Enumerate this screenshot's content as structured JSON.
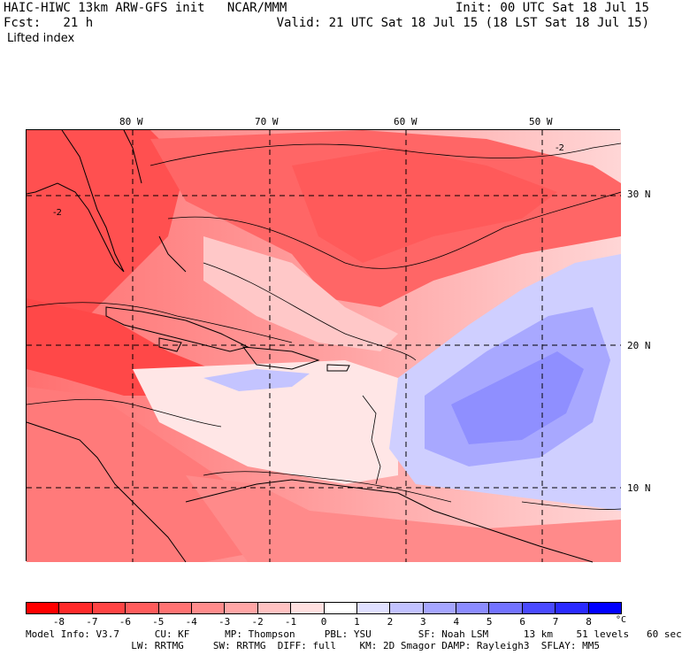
{
  "header": {
    "model_line": "HAIC-HIWC 13km ARW-GFS init   NCAR/MMM",
    "init_line": "Init: 00 UTC Sat 18 Jul 15",
    "fcst_line": "Fcst:   21 h",
    "valid_line": "Valid: 21 UTC Sat 18 Jul 15 (18 LST Sat 18 Jul 15)",
    "field_name": "Lifted index"
  },
  "map": {
    "lon_labels": [
      "80 W",
      "70 W",
      "60 W",
      "50 W"
    ],
    "lat_labels": [
      "30 N",
      "20 N",
      "10 N"
    ],
    "contour_labels": [
      "-2",
      "-2"
    ]
  },
  "colorbar": {
    "ticks": [
      "-8",
      "-7",
      "-6",
      "-5",
      "-4",
      "-3",
      "-2",
      "-1",
      "0",
      "1",
      "2",
      "3",
      "4",
      "5",
      "6",
      "7",
      "8"
    ],
    "unit": "°C",
    "colors": [
      "#ff0000",
      "#ff2a2a",
      "#ff4444",
      "#ff5c5c",
      "#ff7373",
      "#ff8c8c",
      "#ffa6a6",
      "#ffc2c2",
      "#ffe0e0",
      "#ffffff",
      "#e0e0ff",
      "#c2c2ff",
      "#a6a6ff",
      "#8c8cff",
      "#7373ff",
      "#4a4aff",
      "#2a2aff",
      "#0000ff"
    ]
  },
  "footer": {
    "line1": "Model Info: V3.7      CU: KF      MP: Thompson     PBL: YSU        SF: Noah LSM      13 km    51 levels   60 sec",
    "line2": "                  LW: RRTMG     SW: RRTMG  DIFF: full    KM: 2D Smagor DAMP: Rayleigh3  SFLAY: MM5"
  }
}
